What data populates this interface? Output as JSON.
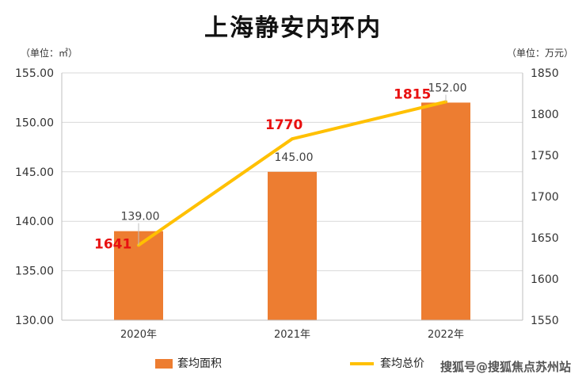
{
  "title": "上海静安内环内",
  "left_unit": "（单位：㎡）",
  "right_unit": "（单位：万元）",
  "watermark": "搜狐号@搜狐焦点苏州站",
  "colors": {
    "bar": "#ED7D31",
    "line": "#FFC000",
    "line_label": "#E81010"
  },
  "chart_data": {
    "type": "bar",
    "categories": [
      "2020年",
      "2021年",
      "2022年"
    ],
    "series": [
      {
        "name": "套均面积",
        "type": "bar",
        "axis": "left",
        "values": [
          139.0,
          145.0,
          152.0
        ],
        "labels": [
          "139.00",
          "145.00",
          "152.00"
        ]
      },
      {
        "name": "套均总价",
        "type": "line",
        "axis": "right",
        "values": [
          1641,
          1770,
          1815
        ],
        "labels": [
          "1641",
          "1770",
          "1815"
        ]
      }
    ],
    "y_left": {
      "min": 130,
      "max": 155,
      "ticks": [
        "130.00",
        "135.00",
        "140.00",
        "145.00",
        "150.00",
        "155.00"
      ]
    },
    "y_right": {
      "min": 1550,
      "max": 1850,
      "ticks": [
        "1550",
        "1600",
        "1650",
        "1700",
        "1750",
        "1800",
        "1850"
      ]
    },
    "grid": true,
    "legend_position": "bottom"
  }
}
